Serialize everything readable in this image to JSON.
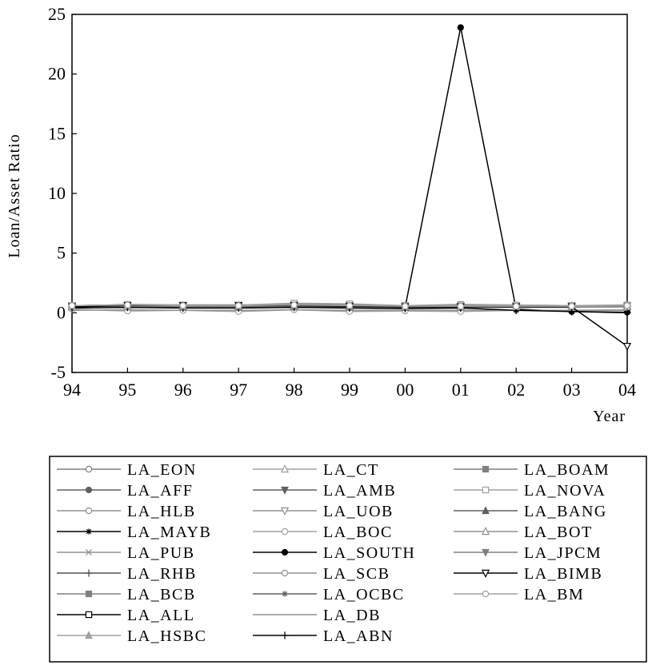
{
  "chart_data": {
    "type": "line",
    "title": "",
    "xlabel": "Year",
    "ylabel": "Loan/Asset Ratio",
    "x": [
      "94",
      "95",
      "96",
      "97",
      "98",
      "99",
      "00",
      "01",
      "02",
      "03",
      "04"
    ],
    "xticks": [
      "94",
      "95",
      "96",
      "97",
      "98",
      "99",
      "00",
      "01",
      "02",
      "03",
      "04"
    ],
    "ylim": [
      -5,
      25
    ],
    "yticks": [
      -5,
      0,
      5,
      10,
      15,
      20,
      25
    ],
    "grid": false,
    "legend_position": "bottom",
    "series": [
      {
        "name": "LA_EON",
        "color": "#808080",
        "marker": "circle-open",
        "values": [
          0.55,
          0.6,
          0.6,
          0.6,
          0.65,
          0.6,
          0.55,
          0.6,
          0.6,
          0.6,
          0.6
        ]
      },
      {
        "name": "LA_AFF",
        "color": "#606060",
        "marker": "circle-filled",
        "values": [
          0.5,
          0.55,
          0.55,
          0.55,
          0.6,
          0.55,
          0.5,
          0.55,
          0.5,
          0.5,
          0.5
        ]
      },
      {
        "name": "LA_HLB",
        "color": "#909090",
        "marker": "circle-open",
        "values": [
          0.45,
          0.5,
          0.45,
          0.4,
          0.5,
          0.45,
          0.4,
          0.45,
          0.45,
          0.45,
          0.5
        ]
      },
      {
        "name": "LA_MAYB",
        "color": "#000000",
        "marker": "star",
        "values": [
          0.6,
          0.65,
          0.6,
          0.6,
          0.65,
          0.6,
          0.55,
          0.6,
          0.5,
          0.5,
          0.55
        ]
      },
      {
        "name": "LA_PUB",
        "color": "#909090",
        "marker": "x",
        "values": [
          0.55,
          0.6,
          0.6,
          0.6,
          0.6,
          0.6,
          0.55,
          0.6,
          0.6,
          0.6,
          0.6
        ]
      },
      {
        "name": "LA_RHB",
        "color": "#505050",
        "marker": "plus",
        "values": [
          0.6,
          0.65,
          0.6,
          0.6,
          0.65,
          0.6,
          0.6,
          0.6,
          0.55,
          0.55,
          0.55
        ]
      },
      {
        "name": "LA_BCB",
        "color": "#808080",
        "marker": "square-filled",
        "values": [
          0.55,
          0.6,
          0.6,
          0.55,
          0.6,
          0.55,
          0.5,
          0.5,
          0.5,
          0.5,
          0.5
        ]
      },
      {
        "name": "LA_ALL",
        "color": "#000000",
        "marker": "square-open",
        "values": [
          0.5,
          0.55,
          0.55,
          0.55,
          0.6,
          0.55,
          0.5,
          0.5,
          0.5,
          0.5,
          0.55
        ]
      },
      {
        "name": "LA_HSBC",
        "color": "#a0a0a0",
        "marker": "triangle-filled",
        "values": [
          0.45,
          0.5,
          0.5,
          0.5,
          0.55,
          0.5,
          0.45,
          0.5,
          0.5,
          0.5,
          0.5
        ]
      },
      {
        "name": "LA_CT",
        "color": "#a0a0a0",
        "marker": "triangle-open",
        "values": [
          0.55,
          0.6,
          0.6,
          0.6,
          0.6,
          0.6,
          0.55,
          0.55,
          0.55,
          0.55,
          0.6
        ]
      },
      {
        "name": "LA_AMB",
        "color": "#606060",
        "marker": "triangle-down-filled",
        "values": [
          0.6,
          0.65,
          0.65,
          0.65,
          0.7,
          0.65,
          0.6,
          0.6,
          0.6,
          0.6,
          0.6
        ]
      },
      {
        "name": "LA_UOB",
        "color": "#909090",
        "marker": "triangle-down-open",
        "values": [
          0.6,
          0.65,
          0.6,
          0.6,
          0.65,
          0.6,
          0.55,
          0.6,
          0.6,
          0.6,
          0.6
        ]
      },
      {
        "name": "LA_BOC",
        "color": "#a0a0a0",
        "marker": "circle-open",
        "values": [
          0.3,
          0.15,
          0.2,
          0.1,
          0.25,
          0.1,
          0.15,
          0.1,
          0.2,
          0.2,
          0.25
        ]
      },
      {
        "name": "LA_SOUTH",
        "color": "#000000",
        "marker": "circle-filled",
        "values": [
          0.5,
          0.55,
          0.5,
          0.5,
          0.55,
          0.5,
          0.45,
          23.9,
          0.3,
          0.1,
          0.05
        ]
      },
      {
        "name": "LA_SCB",
        "color": "#909090",
        "marker": "circle-open",
        "values": [
          0.55,
          0.6,
          0.55,
          0.55,
          0.6,
          0.55,
          0.5,
          0.5,
          0.5,
          0.5,
          0.55
        ]
      },
      {
        "name": "LA_OCBC",
        "color": "#606060",
        "marker": "star",
        "values": [
          0.6,
          0.65,
          0.6,
          0.6,
          0.65,
          0.6,
          0.55,
          0.55,
          0.55,
          0.55,
          0.6
        ]
      },
      {
        "name": "LA_DB",
        "color": "#909090",
        "marker": "none",
        "values": [
          0.2,
          0.25,
          0.2,
          0.2,
          0.25,
          0.2,
          0.2,
          0.2,
          0.2,
          0.2,
          0.2
        ]
      },
      {
        "name": "LA_ABN",
        "color": "#000000",
        "marker": "plus",
        "values": [
          0.4,
          0.45,
          0.4,
          0.4,
          0.45,
          0.4,
          0.35,
          0.4,
          0.2,
          0.1,
          0.0
        ]
      },
      {
        "name": "LA_BOAM",
        "color": "#808080",
        "marker": "square-filled",
        "values": [
          0.55,
          0.7,
          0.65,
          0.65,
          0.7,
          0.65,
          0.6,
          0.7,
          0.65,
          0.6,
          0.65
        ]
      },
      {
        "name": "LA_NOVA",
        "color": "#a0a0a0",
        "marker": "square-open",
        "values": [
          0.6,
          0.65,
          0.65,
          0.65,
          0.8,
          0.75,
          0.6,
          0.65,
          0.65,
          0.6,
          0.6
        ]
      },
      {
        "name": "LA_BANG",
        "color": "#606060",
        "marker": "triangle-filled",
        "values": [
          0.5,
          0.55,
          0.5,
          0.5,
          0.55,
          0.5,
          0.45,
          0.5,
          0.5,
          0.5,
          0.55
        ]
      },
      {
        "name": "LA_BOT",
        "color": "#909090",
        "marker": "triangle-open",
        "values": [
          0.5,
          0.55,
          0.55,
          0.55,
          0.6,
          0.55,
          0.5,
          0.5,
          0.5,
          0.5,
          0.5
        ]
      },
      {
        "name": "LA_JPCM",
        "color": "#808080",
        "marker": "triangle-down-filled",
        "values": [
          0.55,
          0.6,
          0.6,
          0.6,
          0.65,
          0.6,
          0.55,
          0.55,
          0.55,
          0.55,
          0.55
        ]
      },
      {
        "name": "LA_BIMB",
        "color": "#000000",
        "marker": "triangle-down-open",
        "values": [
          0.5,
          0.6,
          0.6,
          0.6,
          0.6,
          0.55,
          0.5,
          0.5,
          0.5,
          0.5,
          -2.8
        ]
      },
      {
        "name": "LA_BM",
        "color": "#a0a0a0",
        "marker": "circle-open",
        "values": [
          0.6,
          0.65,
          0.6,
          0.6,
          0.65,
          0.6,
          0.55,
          0.55,
          0.55,
          0.55,
          0.6
        ]
      }
    ],
    "legend_columns": [
      [
        "LA_EON",
        "LA_AFF",
        "LA_HLB",
        "LA_MAYB",
        "LA_PUB",
        "LA_RHB",
        "LA_BCB",
        "LA_ALL",
        "LA_HSBC"
      ],
      [
        "LA_CT",
        "LA_AMB",
        "LA_UOB",
        "LA_BOC",
        "LA_SOUTH",
        "LA_SCB",
        "LA_OCBC",
        "LA_DB",
        "LA_ABN"
      ],
      [
        "LA_BOAM",
        "LA_NOVA",
        "LA_BANG",
        "LA_BOT",
        "LA_JPCM",
        "LA_BIMB",
        "LA_BM"
      ]
    ]
  }
}
